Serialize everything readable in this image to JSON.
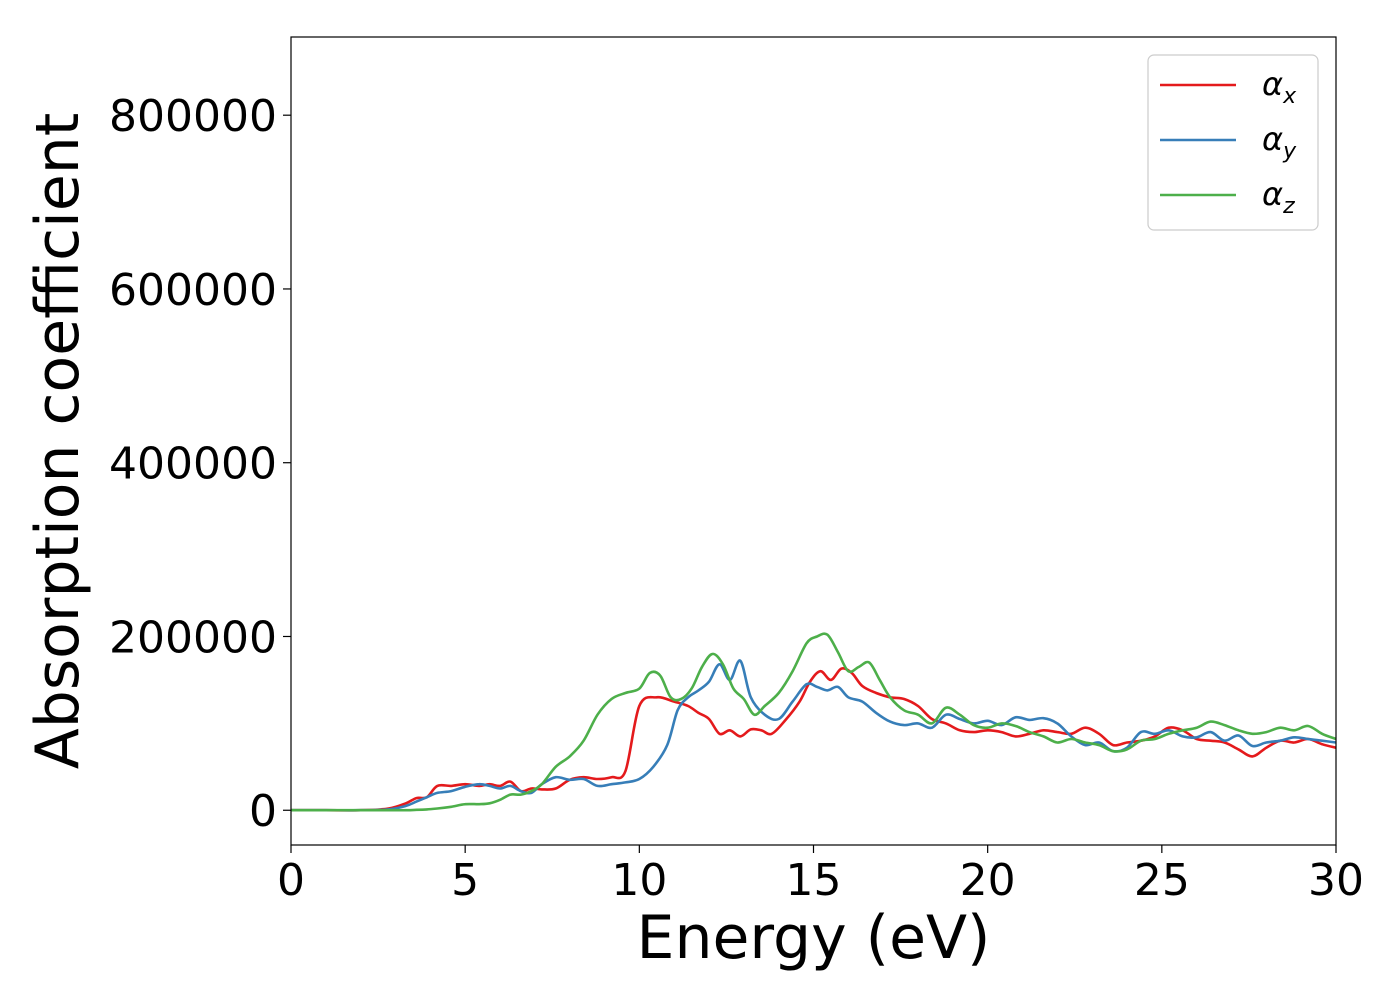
{
  "chart_data": {
    "type": "line",
    "title": "",
    "xlabel": "Energy (eV)",
    "ylabel": "Absorption coefficient",
    "xlim": [
      0,
      30
    ],
    "ylim": [
      -40000,
      890000
    ],
    "xticks": [
      0,
      5,
      10,
      15,
      20,
      25,
      30
    ],
    "yticks": [
      0,
      200000,
      400000,
      600000,
      800000
    ],
    "xtick_labels": [
      "0",
      "5",
      "10",
      "15",
      "20",
      "25",
      "30"
    ],
    "ytick_labels": [
      "0",
      "200000",
      "400000",
      "600000",
      "800000"
    ],
    "grid": false,
    "legend_position": "top-right",
    "series": [
      {
        "name": "α_x",
        "label_base": "α",
        "label_sub": "x",
        "color": "#e41a1c",
        "x": [
          0,
          1,
          2,
          2.8,
          3.3,
          3.6,
          3.9,
          4.2,
          4.6,
          5.0,
          5.4,
          5.7,
          6.0,
          6.3,
          6.6,
          6.9,
          7.2,
          7.6,
          8.0,
          8.4,
          8.8,
          9.2,
          9.6,
          10.0,
          10.5,
          11.0,
          11.4,
          11.7,
          12.0,
          12.3,
          12.6,
          12.9,
          13.2,
          13.5,
          13.8,
          14.2,
          14.6,
          14.9,
          15.2,
          15.5,
          15.8,
          16.1,
          16.4,
          16.8,
          17.2,
          17.6,
          18.0,
          18.4,
          18.8,
          19.2,
          19.6,
          20.0,
          20.4,
          20.8,
          21.2,
          21.6,
          22.0,
          22.4,
          22.8,
          23.2,
          23.6,
          24.0,
          24.4,
          24.8,
          25.2,
          25.6,
          26.0,
          26.4,
          26.8,
          27.2,
          27.6,
          28.0,
          28.4,
          28.8,
          29.2,
          29.6,
          30.0
        ],
        "y": [
          0,
          0,
          0,
          2000,
          8000,
          14000,
          15000,
          28000,
          28000,
          30000,
          28000,
          30000,
          28000,
          33000,
          22000,
          25000,
          24000,
          25000,
          35000,
          38000,
          36000,
          38000,
          45000,
          120000,
          130000,
          125000,
          120000,
          112000,
          105000,
          88000,
          92000,
          85000,
          93000,
          92000,
          88000,
          104000,
          125000,
          148000,
          160000,
          150000,
          163000,
          158000,
          143000,
          135000,
          130000,
          128000,
          120000,
          105000,
          100000,
          92000,
          90000,
          92000,
          90000,
          85000,
          88000,
          92000,
          90000,
          88000,
          95000,
          88000,
          75000,
          78000,
          80000,
          85000,
          95000,
          92000,
          82000,
          80000,
          78000,
          70000,
          62000,
          72000,
          80000,
          78000,
          82000,
          76000,
          72000
        ]
      },
      {
        "name": "α_y",
        "label_base": "α",
        "label_sub": "y",
        "color": "#377eb8",
        "x": [
          0,
          1,
          2,
          2.8,
          3.3,
          3.6,
          3.9,
          4.2,
          4.6,
          5.0,
          5.4,
          5.7,
          6.0,
          6.3,
          6.6,
          6.9,
          7.2,
          7.6,
          8.0,
          8.4,
          8.8,
          9.2,
          9.6,
          10.0,
          10.4,
          10.8,
          11.1,
          11.4,
          11.7,
          12.0,
          12.3,
          12.6,
          12.9,
          13.2,
          13.6,
          14.0,
          14.4,
          14.8,
          15.1,
          15.4,
          15.7,
          16.0,
          16.4,
          16.8,
          17.2,
          17.6,
          18.0,
          18.4,
          18.8,
          19.2,
          19.6,
          20.0,
          20.4,
          20.8,
          21.2,
          21.6,
          22.0,
          22.4,
          22.8,
          23.2,
          23.6,
          24.0,
          24.4,
          24.8,
          25.2,
          25.6,
          26.0,
          26.4,
          26.8,
          27.2,
          27.6,
          28.0,
          28.4,
          28.8,
          29.2,
          29.6,
          30.0
        ],
        "y": [
          0,
          0,
          0,
          1000,
          5000,
          10000,
          15000,
          20000,
          22000,
          27000,
          30000,
          28000,
          25000,
          28000,
          22000,
          20000,
          30000,
          38000,
          35000,
          36000,
          28000,
          30000,
          32000,
          36000,
          50000,
          75000,
          115000,
          130000,
          138000,
          148000,
          168000,
          150000,
          172000,
          130000,
          110000,
          105000,
          125000,
          145000,
          142000,
          138000,
          142000,
          130000,
          125000,
          112000,
          102000,
          98000,
          100000,
          95000,
          110000,
          105000,
          100000,
          103000,
          98000,
          107000,
          104000,
          106000,
          100000,
          85000,
          75000,
          78000,
          68000,
          72000,
          90000,
          88000,
          92000,
          85000,
          84000,
          90000,
          80000,
          86000,
          74000,
          78000,
          80000,
          84000,
          82000,
          80000,
          78000
        ]
      },
      {
        "name": "α_z",
        "label_base": "α",
        "label_sub": "z",
        "color": "#4daf4a",
        "x": [
          0,
          1,
          2,
          2.8,
          3.3,
          3.6,
          3.9,
          4.2,
          4.6,
          5.0,
          5.4,
          5.7,
          6.0,
          6.3,
          6.6,
          6.9,
          7.2,
          7.6,
          8.0,
          8.4,
          8.8,
          9.2,
          9.6,
          10.0,
          10.3,
          10.6,
          10.9,
          11.2,
          11.5,
          11.8,
          12.1,
          12.4,
          12.7,
          13.0,
          13.3,
          13.6,
          14.0,
          14.4,
          14.8,
          15.1,
          15.4,
          15.7,
          16.0,
          16.3,
          16.6,
          16.9,
          17.2,
          17.6,
          18.0,
          18.4,
          18.8,
          19.2,
          19.6,
          20.0,
          20.4,
          20.8,
          21.2,
          21.6,
          22.0,
          22.4,
          22.8,
          23.2,
          23.6,
          24.0,
          24.4,
          24.8,
          25.2,
          25.6,
          26.0,
          26.4,
          26.8,
          27.2,
          27.6,
          28.0,
          28.4,
          28.8,
          29.2,
          29.6,
          30.0
        ],
        "y": [
          0,
          0,
          0,
          0,
          0,
          500,
          1000,
          2000,
          4000,
          7000,
          7000,
          8000,
          12000,
          18000,
          18000,
          22000,
          30000,
          50000,
          62000,
          80000,
          110000,
          128000,
          135000,
          140000,
          158000,
          155000,
          130000,
          128000,
          140000,
          165000,
          180000,
          168000,
          140000,
          128000,
          110000,
          120000,
          135000,
          160000,
          192000,
          200000,
          202000,
          182000,
          160000,
          165000,
          170000,
          150000,
          130000,
          115000,
          110000,
          100000,
          118000,
          110000,
          98000,
          95000,
          100000,
          97000,
          90000,
          85000,
          78000,
          82000,
          78000,
          75000,
          68000,
          70000,
          80000,
          82000,
          88000,
          92000,
          95000,
          102000,
          98000,
          92000,
          88000,
          90000,
          95000,
          92000,
          97000,
          88000,
          82000
        ]
      }
    ]
  }
}
